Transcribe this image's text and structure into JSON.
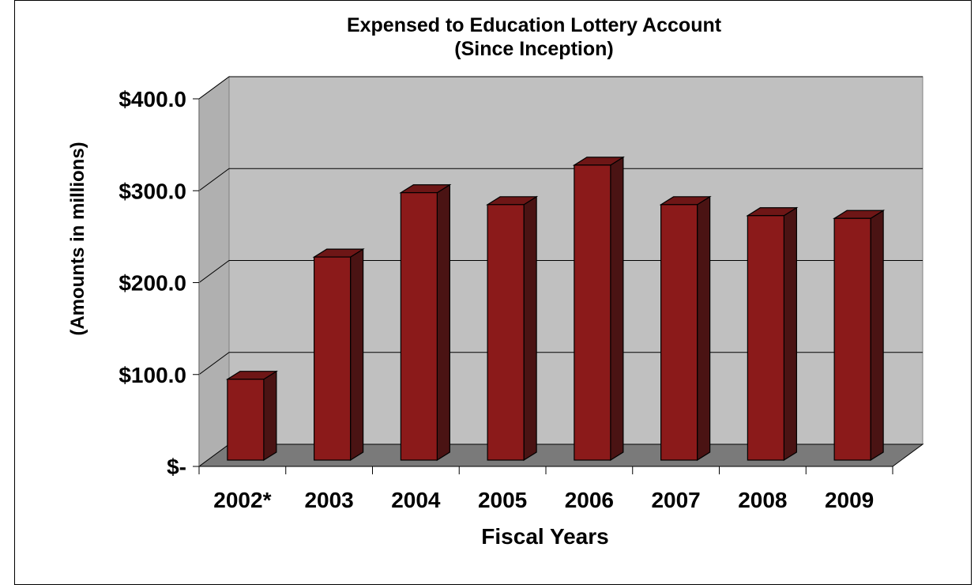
{
  "chart_data": {
    "type": "bar",
    "title": "Expensed to Education Lottery Account",
    "subtitle": "(Since Inception)",
    "xlabel": "Fiscal Years",
    "ylabel": "(Amounts in millions)",
    "categories": [
      "2002*",
      "2003",
      "2004",
      "2005",
      "2006",
      "2007",
      "2008",
      "2009"
    ],
    "values": [
      88.0,
      221.0,
      291.0,
      278.0,
      321.0,
      278.0,
      266.0,
      263.0
    ],
    "ylim": [
      0,
      400
    ],
    "yticks": [
      0,
      100,
      200,
      300,
      400
    ],
    "ytick_labels": [
      "$-",
      "$100.0",
      "$200.0",
      "$300.0",
      "$400.0"
    ],
    "grid": true,
    "style": "3d-column",
    "colors": {
      "bar_front": "#8b1a1a",
      "bar_side": "#4a1313",
      "bar_top": "#6e1616",
      "back_wall": "#c0c0c0",
      "side_wall": "#b0b0b0",
      "floor": "#7a7a7a"
    }
  }
}
